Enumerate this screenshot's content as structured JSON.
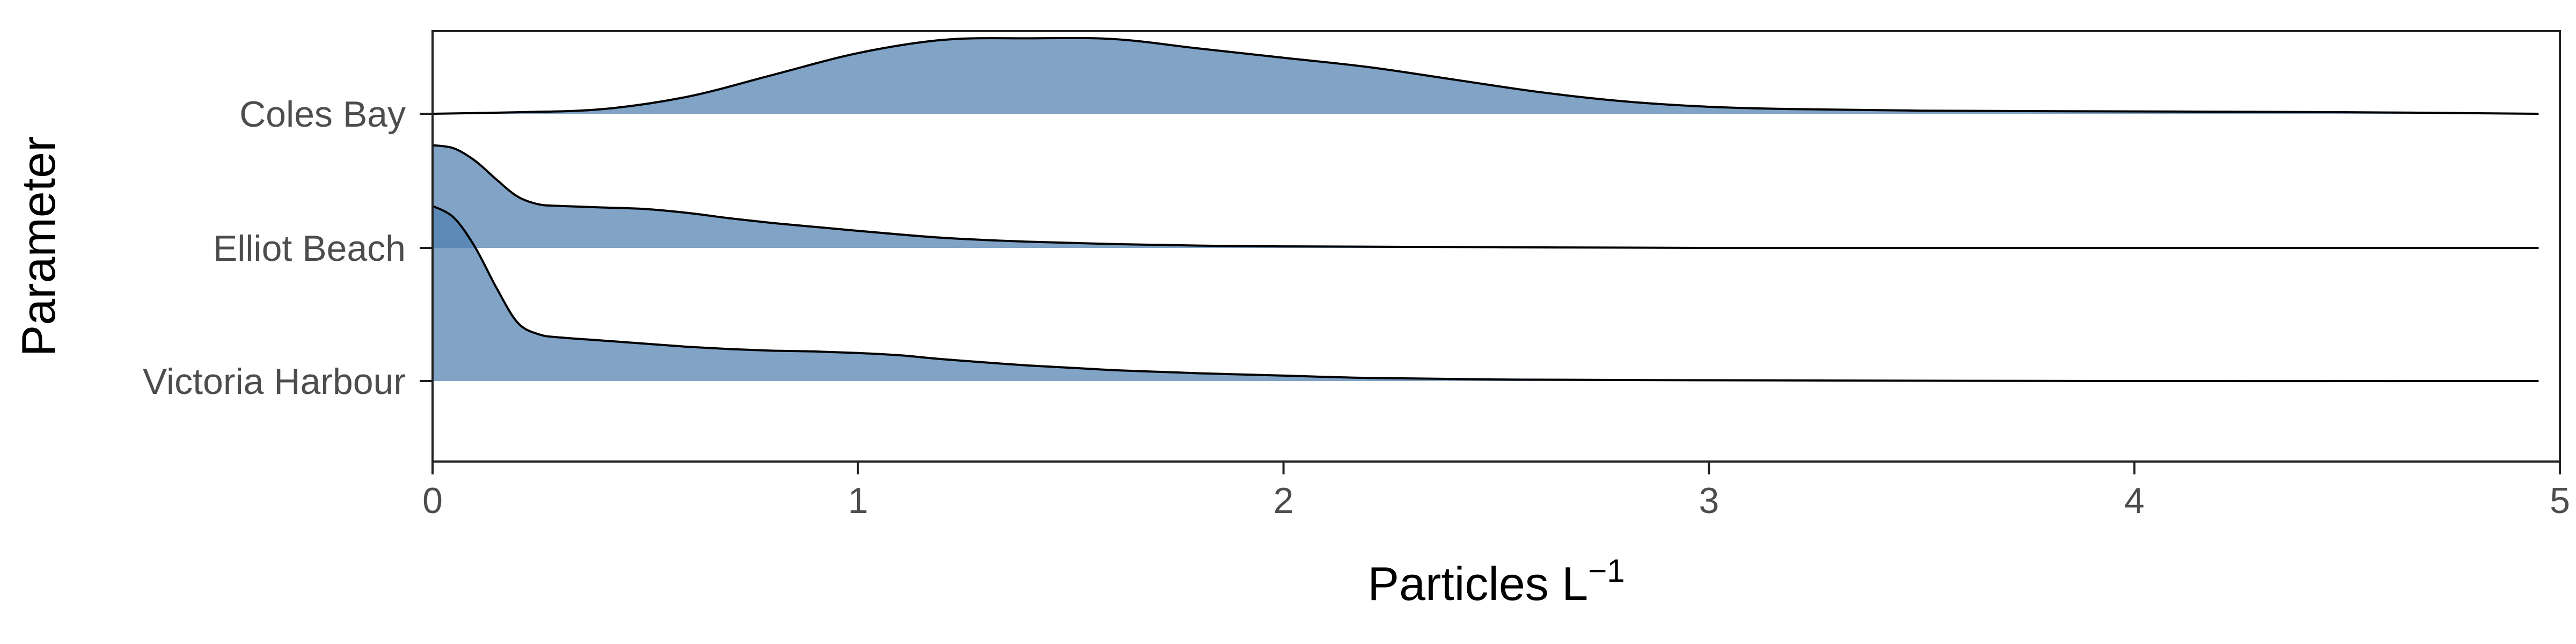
{
  "chart_data": {
    "type": "area",
    "subtype": "ridgeline-density",
    "xlabel": "Particles L",
    "xlabel_superscript": "−1",
    "ylabel": "Parameter",
    "xlim": [
      0,
      5
    ],
    "x_ticks": [
      0,
      1,
      2,
      3,
      4,
      5
    ],
    "fill_color": "#4f7fb0",
    "line_color": "#000000",
    "grid": false,
    "series": [
      {
        "name": "Coles Bay",
        "x": [
          0,
          0.2,
          0.4,
          0.6,
          0.8,
          1.0,
          1.2,
          1.4,
          1.6,
          1.8,
          2.0,
          2.2,
          2.4,
          2.6,
          2.8,
          3.0,
          3.2,
          3.5,
          4.0,
          4.5,
          4.95
        ],
        "density": [
          0.0,
          0.02,
          0.06,
          0.22,
          0.5,
          0.78,
          0.95,
          0.97,
          0.96,
          0.84,
          0.72,
          0.6,
          0.44,
          0.28,
          0.16,
          0.09,
          0.06,
          0.04,
          0.03,
          0.02,
          0.0
        ]
      },
      {
        "name": "Elliot Beach",
        "x": [
          0,
          0.05,
          0.1,
          0.15,
          0.2,
          0.25,
          0.3,
          0.4,
          0.5,
          0.6,
          0.7,
          0.8,
          0.9,
          1.0,
          1.2,
          1.4,
          1.6,
          1.8,
          2.0,
          2.5,
          3.0,
          4.0,
          4.95
        ],
        "density": [
          1.32,
          1.28,
          1.12,
          0.88,
          0.66,
          0.56,
          0.54,
          0.52,
          0.5,
          0.45,
          0.38,
          0.32,
          0.27,
          0.22,
          0.13,
          0.08,
          0.05,
          0.03,
          0.02,
          0.01,
          0.0,
          0.0,
          0.0
        ]
      },
      {
        "name": "Victoria Harbour",
        "x": [
          0,
          0.05,
          0.1,
          0.15,
          0.2,
          0.25,
          0.3,
          0.4,
          0.5,
          0.6,
          0.7,
          0.8,
          0.9,
          1.0,
          1.1,
          1.2,
          1.4,
          1.6,
          1.8,
          2.0,
          2.2,
          2.5,
          3.0,
          4.0,
          4.95
        ],
        "density": [
          2.25,
          2.1,
          1.72,
          1.2,
          0.75,
          0.6,
          0.56,
          0.52,
          0.48,
          0.44,
          0.41,
          0.39,
          0.38,
          0.36,
          0.33,
          0.28,
          0.2,
          0.14,
          0.1,
          0.07,
          0.04,
          0.02,
          0.01,
          0.0,
          0.0
        ]
      }
    ]
  }
}
